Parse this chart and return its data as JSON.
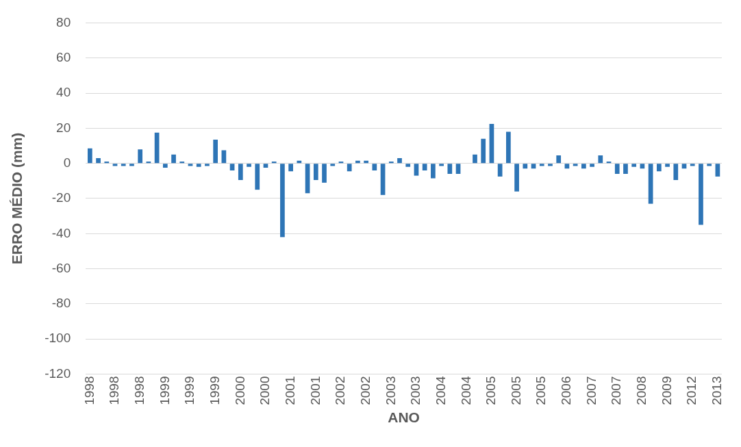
{
  "chart_data": {
    "type": "bar",
    "xlabel": "ANO",
    "ylabel": "ERRO MÉDIO (mm)",
    "categories": [
      "1998",
      null,
      null,
      "1998",
      null,
      null,
      "1998",
      null,
      null,
      "1999",
      null,
      null,
      "1999",
      null,
      null,
      "1999",
      null,
      null,
      "2000",
      null,
      null,
      "2000",
      null,
      null,
      "2001",
      null,
      null,
      "2001",
      null,
      null,
      "2002",
      null,
      null,
      "2002",
      null,
      null,
      "2003",
      null,
      null,
      "2003",
      null,
      null,
      "2004",
      null,
      null,
      "2004",
      null,
      null,
      "2005",
      null,
      null,
      "2005",
      null,
      null,
      "2005",
      null,
      null,
      "2006",
      null,
      null,
      "2007",
      null,
      null,
      "2007",
      null,
      null,
      "2008",
      null,
      null,
      "2009",
      null,
      null,
      "2012",
      null,
      null,
      "2013"
    ],
    "values": [
      8.5,
      3,
      1,
      -1.5,
      -1.5,
      -1.5,
      8,
      1,
      17.5,
      -2.5,
      5,
      1,
      -1.5,
      -2,
      -1.5,
      13.5,
      7.5,
      -4,
      -9.5,
      -2,
      -15,
      -2.5,
      1,
      -42,
      -4.5,
      1.5,
      -17,
      -9.5,
      -11,
      -1.5,
      1,
      -4.5,
      1.5,
      1.5,
      -4,
      -18,
      1,
      3,
      -2,
      -7,
      -4,
      -8.5,
      -1.5,
      -6,
      -6,
      null,
      5,
      14,
      22.5,
      -7.5,
      18,
      -16,
      -3,
      -3,
      -1.5,
      -1.5,
      4.5,
      -3,
      -1.5,
      -3,
      -2,
      4.5,
      1,
      -6,
      -6,
      -2,
      -3,
      -23,
      -4.5,
      -2,
      -9.5,
      -3,
      -1.5,
      -35,
      -1.5,
      -7.5
    ],
    "color": "#2e75b6",
    "ylim": [
      -120,
      80
    ],
    "yticks": [
      -120,
      -100,
      -80,
      -60,
      -40,
      -20,
      0,
      20,
      40,
      60,
      80
    ],
    "grid": "y",
    "legend": false
  }
}
